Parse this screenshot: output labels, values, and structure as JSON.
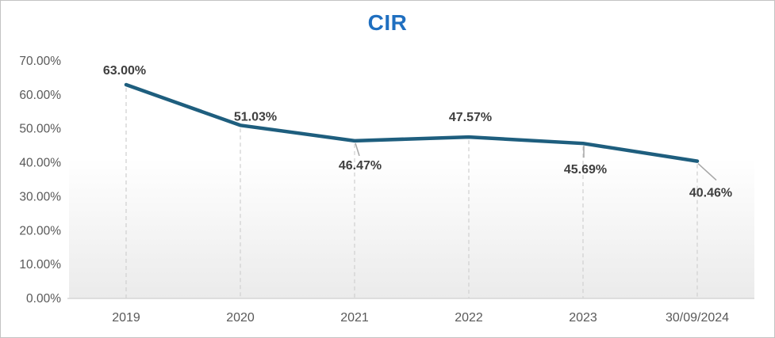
{
  "chart": {
    "title": "CIR",
    "chart_data": {
      "type": "line",
      "categories": [
        "2019",
        "2020",
        "2021",
        "2022",
        "2023",
        "30/09/2024"
      ],
      "series": [
        {
          "name": "CIR",
          "values": [
            63.0,
            51.03,
            46.47,
            47.57,
            45.69,
            40.46
          ],
          "data_labels": [
            "63.00%",
            "51.03%",
            "46.47%",
            "47.57%",
            "45.69%",
            "40.46%"
          ]
        }
      ],
      "yticks": [
        "0.00%",
        "10.00%",
        "20.00%",
        "30.00%",
        "40.00%",
        "50.00%",
        "60.00%",
        "70.00%"
      ],
      "ylim": [
        0,
        70
      ],
      "xlabel": "",
      "ylabel": "",
      "legend": "none",
      "gridlines": "dashed vertical drop lines at each data point, no horizontal gridlines"
    },
    "colors": {
      "title": "#1F6FC0",
      "line": "#1E5E7E",
      "data_label": "#3F3F3F",
      "tick_label": "#595959",
      "axis_line": "#D6D6D6",
      "drop_line": "#D2D2D2",
      "leader_line": "#A6A6A6",
      "plot_fill_top": "#FFFFFF",
      "plot_fill_bottom": "#EBEBEB"
    }
  }
}
